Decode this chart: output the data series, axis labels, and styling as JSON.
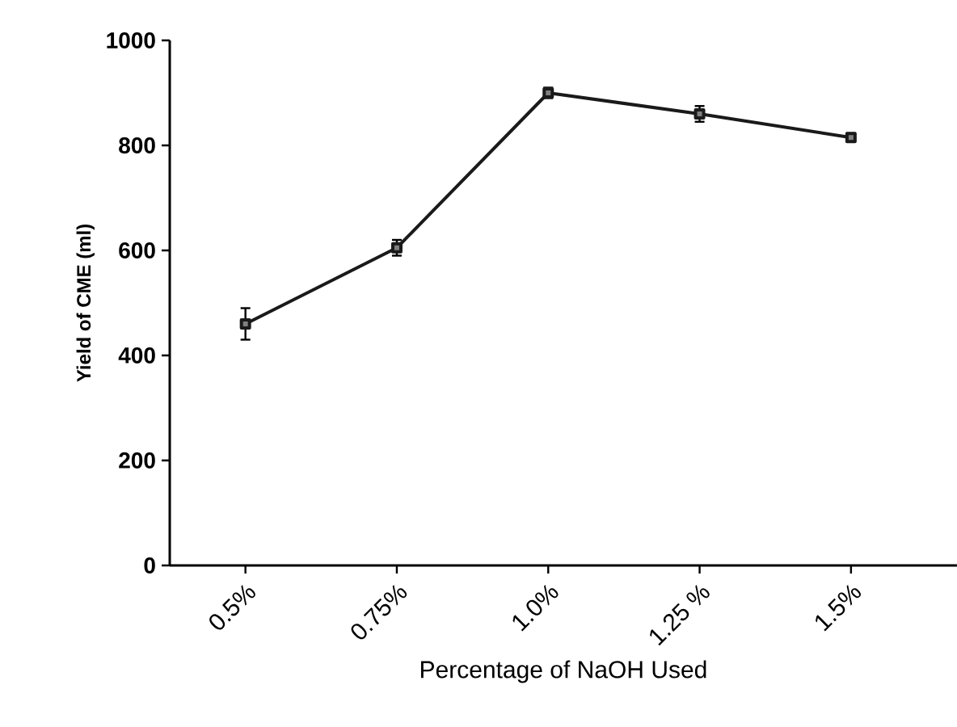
{
  "chart_data": {
    "type": "line",
    "xlabel": "Percentage of NaOH Used",
    "ylabel": "Yield of CME (ml)",
    "categories": [
      "0.5%",
      "0.75%",
      "1.0%",
      "1.25 %",
      "1.5%"
    ],
    "values": [
      460,
      605,
      900,
      860,
      815
    ],
    "errors": [
      30,
      15,
      10,
      15,
      8
    ],
    "color": "#1a1a1a",
    "marker": "square",
    "line_style": "solid",
    "grid": false,
    "ylim": [
      0,
      1000
    ],
    "yticks": [
      0,
      200,
      400,
      600,
      800,
      1000
    ]
  }
}
